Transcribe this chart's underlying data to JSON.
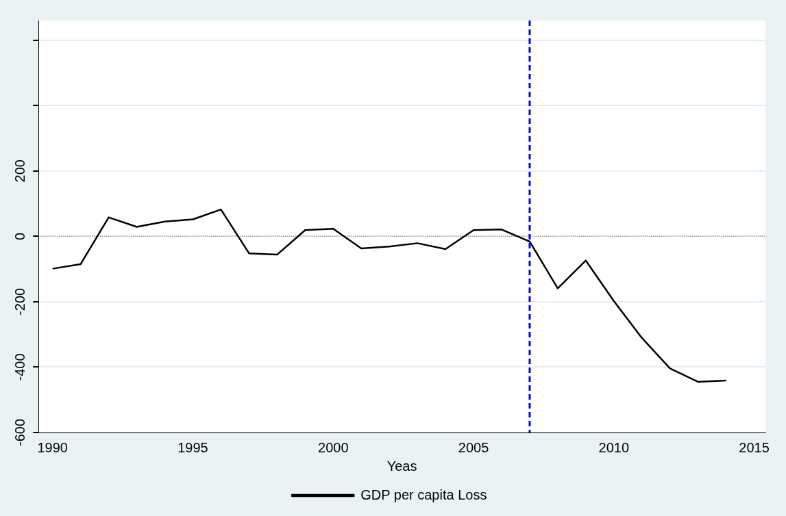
{
  "chart_data": {
    "type": "line",
    "xlabel": "Yeas",
    "x": [
      1990,
      1991,
      1992,
      1993,
      1994,
      1995,
      1996,
      1997,
      1998,
      1999,
      2000,
      2001,
      2002,
      2003,
      2004,
      2005,
      2006,
      2007,
      2008,
      2009,
      2010,
      2011,
      2012,
      2013,
      2014
    ],
    "series": [
      {
        "name": "GDP per capita Loss",
        "color": "#000000",
        "values": [
          -99,
          -85,
          58,
          29,
          45,
          52,
          82,
          -52,
          -56,
          19,
          23,
          -37,
          -31,
          -21,
          -39,
          19,
          21,
          -16,
          -159,
          -74,
          -198,
          -311,
          -404,
          -445,
          -441
        ]
      }
    ],
    "xlim": [
      1989.5,
      2015.4
    ],
    "xticks": [
      1990,
      1995,
      2000,
      2005,
      2010,
      2015
    ],
    "ylim": [
      -600,
      660
    ],
    "yticks": [
      -600,
      -400,
      -200,
      0,
      200,
      {
        "value": 400,
        "label": null
      },
      {
        "value": 600,
        "label": null
      }
    ],
    "ref_lines": [
      {
        "axis": "y",
        "value": 0,
        "color": "#888888",
        "line_style": "dotted"
      },
      {
        "axis": "x",
        "value": 2007,
        "color": "#0000ff",
        "line_style": "dashed"
      }
    ],
    "grid": "y",
    "legend": "bottom",
    "marker": "none",
    "line_style": "solid"
  }
}
